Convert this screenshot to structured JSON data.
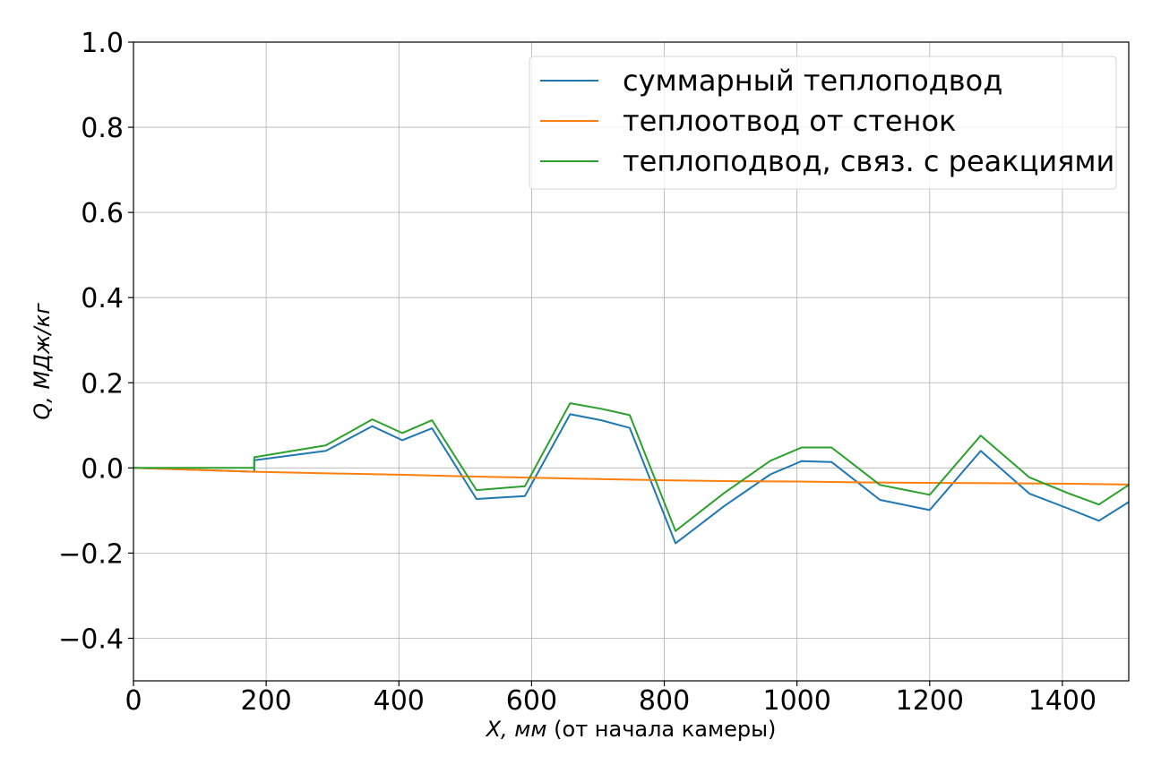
{
  "chart_data": {
    "type": "line",
    "xlabel_math": "X, мм",
    "xlabel_text": " (от начала камеры)",
    "ylabel": "Q, МДж/кг",
    "xlim": [
      0,
      1500
    ],
    "ylim": [
      -0.5,
      1.0
    ],
    "xticks": [
      0,
      200,
      400,
      600,
      800,
      1000,
      1200,
      1400
    ],
    "xtick_labels": [
      "0",
      "200",
      "400",
      "600",
      "800",
      "1000",
      "1200",
      "1400"
    ],
    "yticks": [
      -0.4,
      -0.2,
      0.0,
      0.2,
      0.4,
      0.6,
      0.8,
      1.0
    ],
    "ytick_labels": [
      "−0.4",
      "−0.2",
      "0.0",
      "0.2",
      "0.4",
      "0.6",
      "0.8",
      "1.0"
    ],
    "grid": true,
    "legend_position": "top-right",
    "series": [
      {
        "name": "суммарный теплоподвод",
        "color": "#1f77b4",
        "x": [
          0,
          182,
          182,
          290,
          360,
          405,
          450,
          517,
          590,
          658,
          705,
          748,
          817,
          890,
          960,
          1007,
          1052,
          1125,
          1200,
          1277,
          1350,
          1410,
          1455,
          1500
        ],
        "y": [
          0.0,
          -0.009,
          0.018,
          0.04,
          0.098,
          0.065,
          0.093,
          -0.073,
          -0.066,
          0.126,
          0.112,
          0.094,
          -0.177,
          -0.09,
          -0.015,
          0.016,
          0.014,
          -0.075,
          -0.099,
          0.04,
          -0.06,
          -0.096,
          -0.124,
          -0.08
        ]
      },
      {
        "name": "теплоотвод от стенок",
        "color": "#ff7f0e",
        "x": [
          0,
          182,
          300,
          400,
          500,
          600,
          700,
          800,
          900,
          1000,
          1100,
          1200,
          1300,
          1400,
          1500
        ],
        "y": [
          0.0,
          -0.009,
          -0.013,
          -0.016,
          -0.02,
          -0.023,
          -0.026,
          -0.029,
          -0.031,
          -0.032,
          -0.034,
          -0.035,
          -0.036,
          -0.037,
          -0.039
        ]
      },
      {
        "name": "теплоподвод, связ. с реакциями",
        "color": "#2ca02c",
        "x": [
          0,
          182,
          182,
          290,
          360,
          405,
          450,
          517,
          590,
          658,
          705,
          748,
          817,
          890,
          960,
          1007,
          1052,
          1125,
          1200,
          1277,
          1350,
          1410,
          1455,
          1500
        ],
        "y": [
          0.0,
          0.0,
          0.025,
          0.053,
          0.114,
          0.082,
          0.112,
          -0.052,
          -0.043,
          0.152,
          0.139,
          0.124,
          -0.148,
          -0.059,
          0.017,
          0.048,
          0.048,
          -0.04,
          -0.063,
          0.076,
          -0.022,
          -0.06,
          -0.086,
          -0.04
        ]
      }
    ]
  }
}
